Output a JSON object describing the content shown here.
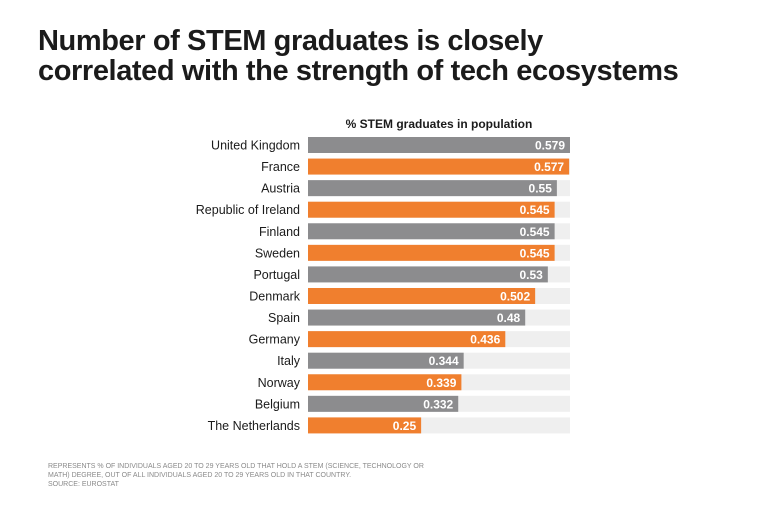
{
  "title_lines": [
    "Number of STEM graduates is closely",
    "correlated with the strength of tech ecosystems"
  ],
  "chart_data": {
    "type": "bar",
    "orientation": "horizontal",
    "title": "% STEM graduates in population",
    "categories": [
      "United Kingdom",
      "France",
      "Austria",
      "Republic of Ireland",
      "Finland",
      "Sweden",
      "Portugal",
      "Denmark",
      "Spain",
      "Germany",
      "Italy",
      "Norway",
      "Belgium",
      "The Netherlands"
    ],
    "values": [
      0.579,
      0.577,
      0.55,
      0.545,
      0.545,
      0.545,
      0.53,
      0.502,
      0.48,
      0.436,
      0.344,
      0.339,
      0.332,
      0.25
    ],
    "labels": [
      "0.579",
      "0.577",
      "0.55",
      "0.545",
      "0.545",
      "0.545",
      "0.53",
      "0.502",
      "0.48",
      "0.436",
      "0.344",
      "0.339",
      "0.332",
      "0.25"
    ],
    "xlim": [
      0,
      0.579
    ],
    "bar_colors": [
      "#8c8c8e",
      "#f07f2e"
    ],
    "track_color": "#efefef",
    "label_color": "#ffffff"
  },
  "footnote_lines": [
    "Represents % of individuals aged 20 to 29 years old that hold a STEM (science, technology or",
    "math) degree, out of all individuals aged 20 to 29 years old in that country.",
    "Source: Eurostat"
  ]
}
